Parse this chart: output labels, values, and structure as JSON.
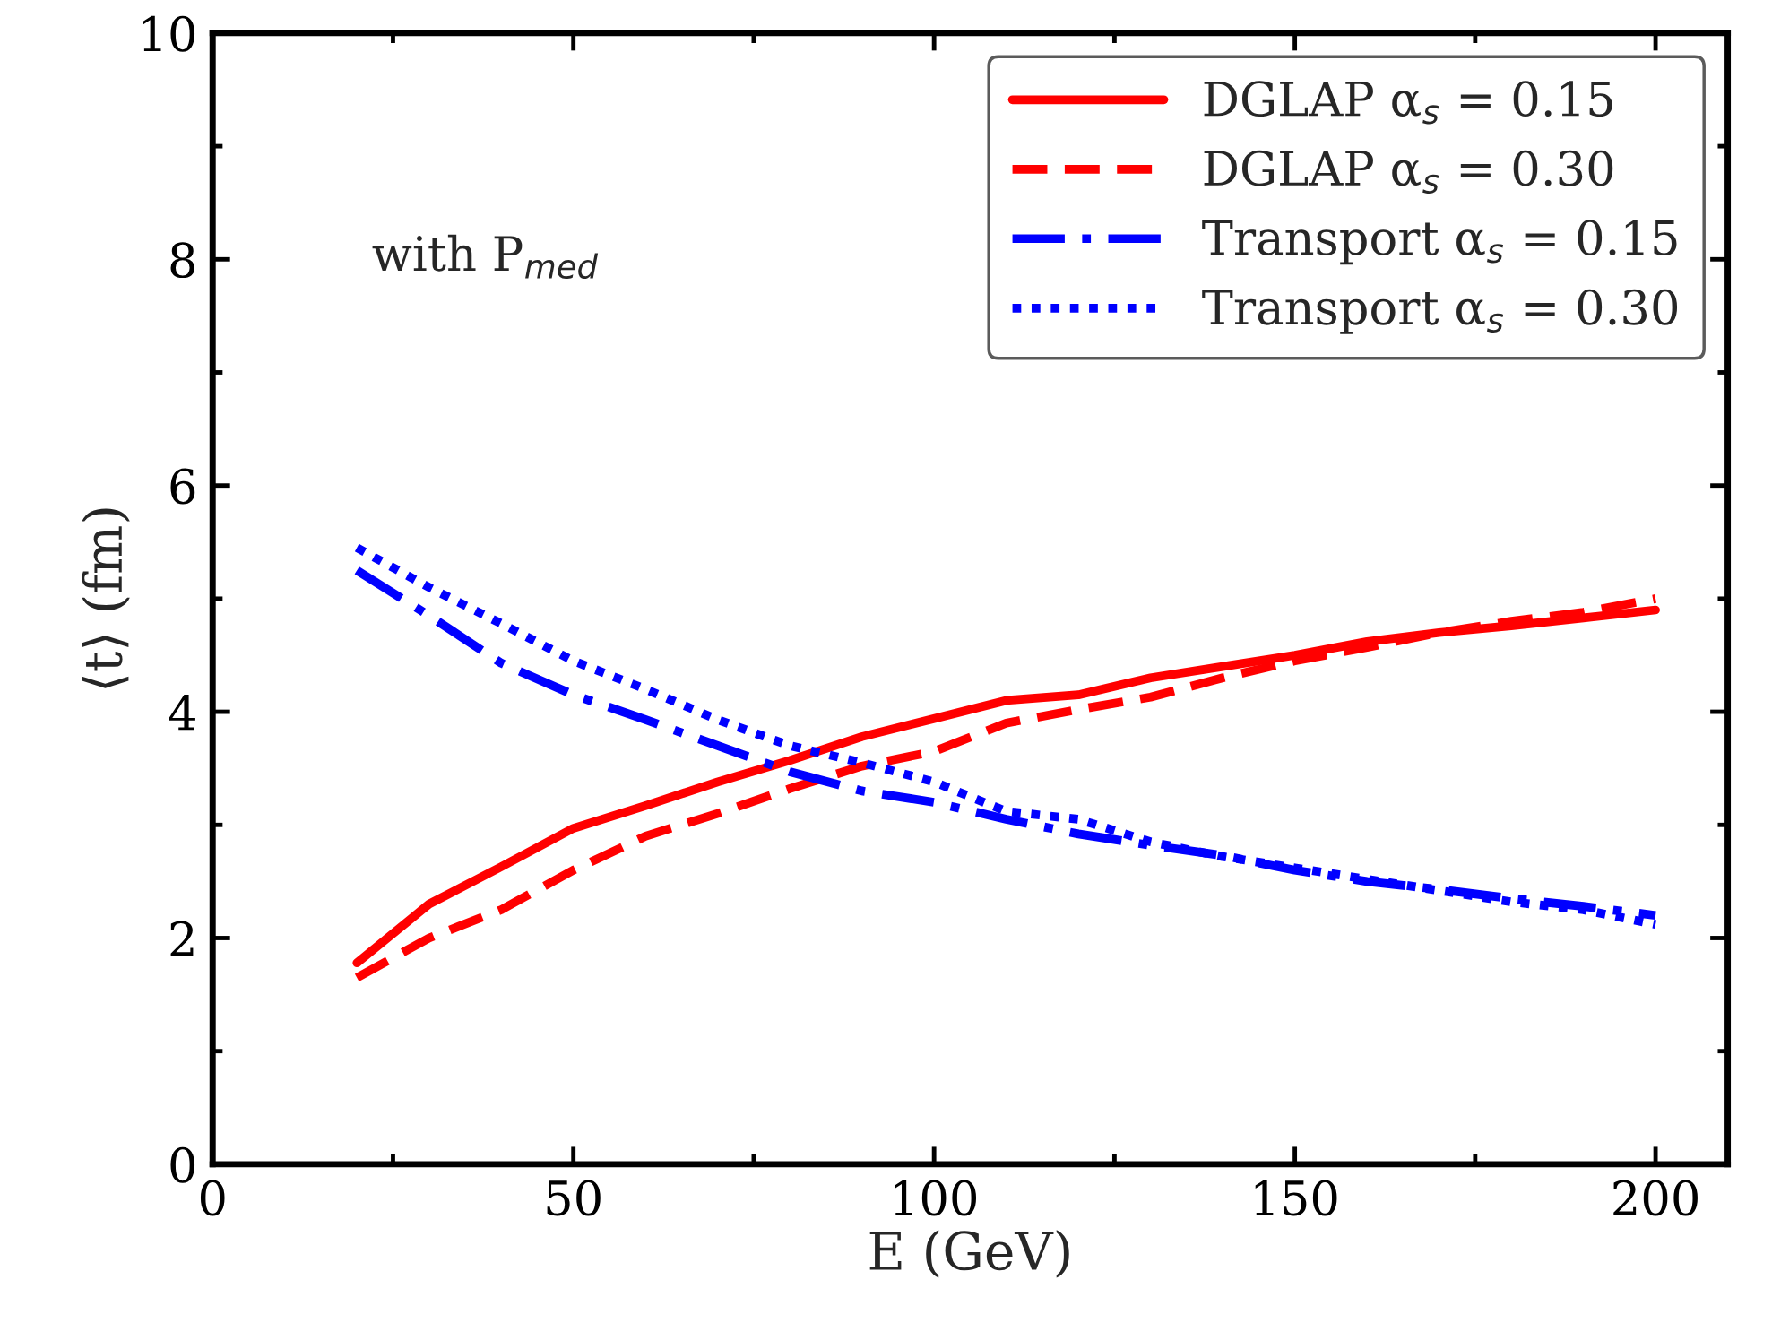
{
  "chart_data": {
    "type": "line",
    "xlabel": "E (GeV)",
    "ylabel": "⟨t⟩ (fm)",
    "x": [
      20,
      30,
      40,
      50,
      60,
      70,
      80,
      90,
      100,
      110,
      120,
      130,
      140,
      150,
      160,
      170,
      180,
      190,
      200
    ],
    "series": [
      {
        "name": "DGLAP α$_{s}$ = 0.15",
        "color": "#ff0000",
        "line_style": "solid",
        "values": [
          1.78,
          2.3,
          2.63,
          2.97,
          3.17,
          3.38,
          3.57,
          3.78,
          3.94,
          4.1,
          4.15,
          4.3,
          4.4,
          4.5,
          4.62,
          4.7,
          4.76,
          4.83,
          4.9
        ]
      },
      {
        "name": "DGLAP α$_{s}$ = 0.30",
        "color": "#ff0000",
        "line_style": "dashed",
        "values": [
          1.65,
          2.0,
          2.25,
          2.6,
          2.9,
          3.1,
          3.32,
          3.52,
          3.65,
          3.9,
          4.02,
          4.13,
          4.3,
          4.45,
          4.57,
          4.7,
          4.8,
          4.88,
          5.0
        ]
      },
      {
        "name": "Transport α$_{s}$ = 0.15",
        "color": "#0000ff",
        "line_style": "dashdot",
        "values": [
          5.25,
          4.85,
          4.43,
          4.15,
          3.93,
          3.7,
          3.47,
          3.3,
          3.2,
          3.05,
          2.92,
          2.82,
          2.73,
          2.6,
          2.5,
          2.43,
          2.35,
          2.28,
          2.2
        ]
      },
      {
        "name": "Transport α$_{s}$ = 0.30",
        "color": "#0000ff",
        "line_style": "dotted",
        "values": [
          5.45,
          5.1,
          4.78,
          4.45,
          4.2,
          3.93,
          3.7,
          3.55,
          3.38,
          3.12,
          3.05,
          2.85,
          2.72,
          2.62,
          2.52,
          2.42,
          2.32,
          2.25,
          2.12
        ]
      }
    ],
    "xlim": [
      0,
      210
    ],
    "ylim": [
      0,
      10
    ],
    "xticks": [
      0,
      {
        "value": 25,
        "label": null
      },
      50,
      {
        "value": 75,
        "label": null
      },
      100,
      {
        "value": 125,
        "label": null
      },
      150,
      {
        "value": 175,
        "label": null
      },
      200
    ],
    "yticks": [
      0,
      {
        "value": 1,
        "label": null
      },
      2,
      {
        "value": 3,
        "label": null
      },
      4,
      {
        "value": 5,
        "label": null
      },
      6,
      {
        "value": 7,
        "label": null
      },
      8,
      {
        "value": 9,
        "label": null
      },
      10
    ],
    "annotations": [
      "with P$_{med}$"
    ],
    "legend": "top right",
    "grid": false,
    "marker": "none"
  }
}
